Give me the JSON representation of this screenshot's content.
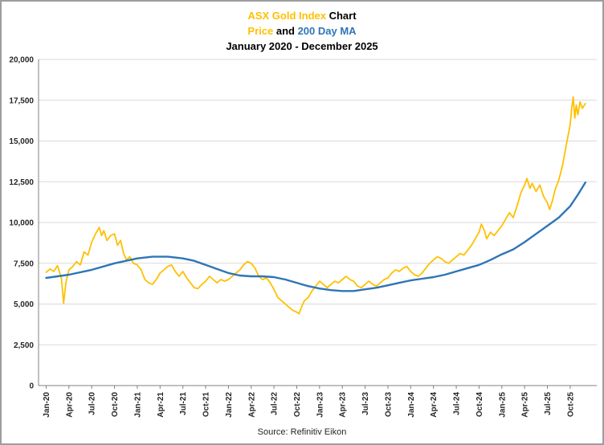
{
  "title": {
    "colored": "ASX Gold Index",
    "rest": " Chart"
  },
  "subtitle": {
    "price": "Price",
    "connector": " and ",
    "ma": "200 Day MA"
  },
  "period": "January 2020 - December 2025",
  "source": "Source: Refinitiv Eikon",
  "colors": {
    "gold": "#FFC000",
    "blue": "#2E75B6",
    "grid": "#D9D9D9",
    "axis": "#808080",
    "text": "#262626"
  },
  "chart_data": {
    "type": "line",
    "title": "ASX Gold Index Chart",
    "subtitle": "Price and 200 Day MA",
    "period": "January 2020 - December 2025",
    "source": "Source: Refinitiv Eikon",
    "x_unit": "months since Jan-2020",
    "x_tick_step_months": 3,
    "x_labels": [
      "Jan-20",
      "Apr-20",
      "Jul-20",
      "Oct-20",
      "Jan-21",
      "Apr-21",
      "Jul-21",
      "Oct-21",
      "Jan-22",
      "Apr-22",
      "Jul-22",
      "Oct-22",
      "Jan-23",
      "Apr-23",
      "Jul-23",
      "Oct-23",
      "Jan-24",
      "Apr-24",
      "Jul-24",
      "Oct-24",
      "Jan-25",
      "Apr-25",
      "Jul-25",
      "Oct-25"
    ],
    "ylim": [
      0,
      20000
    ],
    "y_step": 2500,
    "grid": "horizontal",
    "legend": "none (color-coded title text)",
    "series": [
      {
        "name": "Price",
        "color": "#FFC000",
        "width": 1.8,
        "points": [
          [
            0,
            6950
          ],
          [
            0.5,
            7150
          ],
          [
            1,
            7000
          ],
          [
            1.5,
            7350
          ],
          [
            2,
            6600
          ],
          [
            2.3,
            5050
          ],
          [
            2.6,
            6300
          ],
          [
            3,
            7100
          ],
          [
            3.5,
            7300
          ],
          [
            4,
            7600
          ],
          [
            4.5,
            7400
          ],
          [
            5,
            8200
          ],
          [
            5.5,
            8000
          ],
          [
            6,
            8800
          ],
          [
            6.5,
            9300
          ],
          [
            7,
            9700
          ],
          [
            7.3,
            9200
          ],
          [
            7.6,
            9500
          ],
          [
            8,
            8900
          ],
          [
            8.5,
            9200
          ],
          [
            9,
            9300
          ],
          [
            9.4,
            8600
          ],
          [
            9.8,
            8900
          ],
          [
            10.2,
            8100
          ],
          [
            10.6,
            7700
          ],
          [
            11,
            7900
          ],
          [
            11.5,
            7500
          ],
          [
            12,
            7400
          ],
          [
            12.5,
            7100
          ],
          [
            13,
            6500
          ],
          [
            13.5,
            6300
          ],
          [
            14,
            6200
          ],
          [
            14.5,
            6500
          ],
          [
            15,
            6900
          ],
          [
            15.5,
            7100
          ],
          [
            16,
            7300
          ],
          [
            16.5,
            7400
          ],
          [
            17,
            7000
          ],
          [
            17.5,
            6700
          ],
          [
            18,
            7000
          ],
          [
            18.5,
            6600
          ],
          [
            19,
            6300
          ],
          [
            19.5,
            6000
          ],
          [
            20,
            5950
          ],
          [
            20.5,
            6200
          ],
          [
            21,
            6400
          ],
          [
            21.5,
            6700
          ],
          [
            22,
            6500
          ],
          [
            22.5,
            6300
          ],
          [
            23,
            6500
          ],
          [
            23.5,
            6400
          ],
          [
            24,
            6500
          ],
          [
            24.5,
            6700
          ],
          [
            25,
            6900
          ],
          [
            25.5,
            7100
          ],
          [
            26,
            7400
          ],
          [
            26.5,
            7600
          ],
          [
            27,
            7500
          ],
          [
            27.5,
            7200
          ],
          [
            28,
            6700
          ],
          [
            28.5,
            6500
          ],
          [
            29,
            6600
          ],
          [
            29.5,
            6300
          ],
          [
            30,
            5900
          ],
          [
            30.5,
            5400
          ],
          [
            31,
            5200
          ],
          [
            31.5,
            5000
          ],
          [
            32,
            4800
          ],
          [
            32.5,
            4600
          ],
          [
            33,
            4500
          ],
          [
            33.3,
            4400
          ],
          [
            33.7,
            4900
          ],
          [
            34,
            5200
          ],
          [
            34.5,
            5400
          ],
          [
            35,
            5800
          ],
          [
            35.5,
            6100
          ],
          [
            36,
            6400
          ],
          [
            36.5,
            6200
          ],
          [
            37,
            6000
          ],
          [
            37.5,
            6200
          ],
          [
            38,
            6400
          ],
          [
            38.5,
            6300
          ],
          [
            39,
            6500
          ],
          [
            39.5,
            6700
          ],
          [
            40,
            6500
          ],
          [
            40.5,
            6400
          ],
          [
            41,
            6100
          ],
          [
            41.5,
            6000
          ],
          [
            42,
            6200
          ],
          [
            42.5,
            6400
          ],
          [
            43,
            6200
          ],
          [
            43.5,
            6100
          ],
          [
            44,
            6300
          ],
          [
            44.5,
            6500
          ],
          [
            45,
            6600
          ],
          [
            45.5,
            6900
          ],
          [
            46,
            7100
          ],
          [
            46.5,
            7000
          ],
          [
            47,
            7200
          ],
          [
            47.5,
            7300
          ],
          [
            48,
            7000
          ],
          [
            48.5,
            6800
          ],
          [
            49,
            6700
          ],
          [
            49.5,
            6900
          ],
          [
            50,
            7200
          ],
          [
            50.5,
            7500
          ],
          [
            51,
            7700
          ],
          [
            51.5,
            7900
          ],
          [
            52,
            7800
          ],
          [
            52.5,
            7600
          ],
          [
            53,
            7500
          ],
          [
            53.5,
            7700
          ],
          [
            54,
            7900
          ],
          [
            54.5,
            8100
          ],
          [
            55,
            8000
          ],
          [
            55.5,
            8300
          ],
          [
            56,
            8600
          ],
          [
            56.5,
            9000
          ],
          [
            57,
            9400
          ],
          [
            57.3,
            9900
          ],
          [
            57.7,
            9500
          ],
          [
            58,
            9000
          ],
          [
            58.5,
            9400
          ],
          [
            59,
            9200
          ],
          [
            59.5,
            9500
          ],
          [
            60,
            9800
          ],
          [
            60.5,
            10200
          ],
          [
            61,
            10600
          ],
          [
            61.5,
            10300
          ],
          [
            62,
            11000
          ],
          [
            62.5,
            11800
          ],
          [
            63,
            12300
          ],
          [
            63.3,
            12700
          ],
          [
            63.7,
            12100
          ],
          [
            64,
            12400
          ],
          [
            64.5,
            11900
          ],
          [
            65,
            12300
          ],
          [
            65.5,
            11600
          ],
          [
            66,
            11200
          ],
          [
            66.3,
            10800
          ],
          [
            66.7,
            11400
          ],
          [
            67,
            12000
          ],
          [
            67.5,
            12600
          ],
          [
            68,
            13500
          ],
          [
            68.5,
            14800
          ],
          [
            69,
            16000
          ],
          [
            69.2,
            17000
          ],
          [
            69.4,
            17700
          ],
          [
            69.6,
            16400
          ],
          [
            69.8,
            17200
          ],
          [
            70,
            16600
          ],
          [
            70.3,
            17400
          ],
          [
            70.6,
            17000
          ],
          [
            71,
            17300
          ]
        ]
      },
      {
        "name": "200 Day MA",
        "color": "#2E75B6",
        "width": 2.4,
        "points": [
          [
            0,
            6600
          ],
          [
            3,
            6800
          ],
          [
            6,
            7100
          ],
          [
            9,
            7500
          ],
          [
            12,
            7800
          ],
          [
            14,
            7900
          ],
          [
            16,
            7900
          ],
          [
            17,
            7850
          ],
          [
            18,
            7800
          ],
          [
            19.5,
            7650
          ],
          [
            21,
            7400
          ],
          [
            22.5,
            7150
          ],
          [
            24,
            6900
          ],
          [
            25.5,
            6750
          ],
          [
            27,
            6700
          ],
          [
            28.5,
            6700
          ],
          [
            30,
            6650
          ],
          [
            31.5,
            6500
          ],
          [
            33,
            6300
          ],
          [
            34.5,
            6100
          ],
          [
            36,
            5950
          ],
          [
            37.5,
            5850
          ],
          [
            39,
            5800
          ],
          [
            40.5,
            5800
          ],
          [
            42,
            5900
          ],
          [
            43.5,
            6000
          ],
          [
            45,
            6150
          ],
          [
            46.5,
            6300
          ],
          [
            48,
            6450
          ],
          [
            49.5,
            6550
          ],
          [
            51,
            6650
          ],
          [
            52.5,
            6800
          ],
          [
            54,
            7000
          ],
          [
            55.5,
            7200
          ],
          [
            57,
            7400
          ],
          [
            58.5,
            7700
          ],
          [
            60,
            8050
          ],
          [
            61.5,
            8350
          ],
          [
            63,
            8800
          ],
          [
            64.5,
            9300
          ],
          [
            66,
            9800
          ],
          [
            67.5,
            10300
          ],
          [
            69,
            11000
          ],
          [
            70,
            11700
          ],
          [
            71,
            12450
          ]
        ]
      }
    ]
  }
}
